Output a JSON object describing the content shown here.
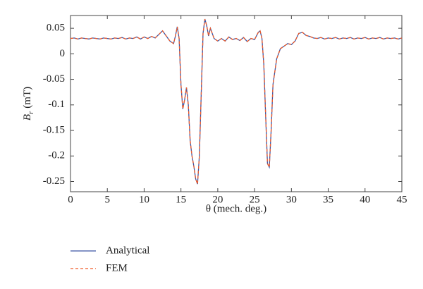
{
  "chart_data": {
    "type": "line",
    "x_label": "θ (mech. deg.)",
    "y_label": {
      "symbol": "B",
      "subscript": "r",
      "unit": "(mT)"
    },
    "xlim": [
      0,
      45
    ],
    "xticks": [
      0,
      5,
      10,
      15,
      20,
      25,
      30,
      35,
      40,
      45
    ],
    "ylim": [
      -0.27,
      0.075
    ],
    "yticks": [
      0.05,
      0,
      -0.05,
      -0.1,
      -0.15,
      -0.2,
      -0.25
    ],
    "x": [
      0,
      0.5,
      1,
      1.5,
      2,
      2.5,
      3,
      3.5,
      4,
      4.5,
      5,
      5.5,
      6,
      6.5,
      7,
      7.5,
      8,
      8.5,
      9,
      9.5,
      10,
      10.5,
      11,
      11.5,
      12,
      12.5,
      13,
      13.5,
      14,
      14.25,
      14.5,
      14.75,
      15,
      15.25,
      15.5,
      15.75,
      16,
      16.25,
      16.5,
      16.75,
      17,
      17.25,
      17.5,
      17.75,
      18,
      18.25,
      18.5,
      18.75,
      19,
      19.5,
      20,
      20.5,
      21,
      21.5,
      22,
      22.5,
      23,
      23.5,
      24,
      24.5,
      25,
      25.5,
      25.75,
      26,
      26.25,
      26.5,
      26.75,
      27,
      27.25,
      27.5,
      28,
      28.5,
      29,
      29.5,
      30,
      30.5,
      31,
      31.5,
      32,
      32.5,
      33,
      33.5,
      34,
      34.5,
      35,
      35.5,
      36,
      36.5,
      37,
      37.5,
      38,
      38.5,
      39,
      39.5,
      40,
      40.5,
      41,
      41.5,
      42,
      42.5,
      43,
      43.5,
      44,
      44.5,
      45
    ],
    "series": [
      {
        "name": "Analytical",
        "color": "#3a55a4",
        "dash": false,
        "values": [
          0.03,
          0.031,
          0.029,
          0.031,
          0.03,
          0.029,
          0.031,
          0.03,
          0.029,
          0.031,
          0.03,
          0.029,
          0.031,
          0.03,
          0.032,
          0.029,
          0.031,
          0.03,
          0.033,
          0.029,
          0.033,
          0.03,
          0.034,
          0.031,
          0.038,
          0.045,
          0.035,
          0.025,
          0.02,
          0.035,
          0.053,
          0.03,
          -0.06,
          -0.108,
          -0.09,
          -0.066,
          -0.1,
          -0.17,
          -0.2,
          -0.22,
          -0.245,
          -0.255,
          -0.2,
          -0.08,
          0.04,
          0.068,
          0.055,
          0.035,
          0.05,
          0.03,
          0.025,
          0.03,
          0.025,
          0.033,
          0.028,
          0.03,
          0.026,
          0.032,
          0.024,
          0.03,
          0.028,
          0.042,
          0.045,
          0.03,
          -0.02,
          -0.12,
          -0.215,
          -0.222,
          -0.15,
          -0.06,
          -0.01,
          0.01,
          0.015,
          0.02,
          0.018,
          0.025,
          0.04,
          0.042,
          0.036,
          0.034,
          0.031,
          0.03,
          0.032,
          0.029,
          0.031,
          0.03,
          0.032,
          0.029,
          0.031,
          0.03,
          0.032,
          0.029,
          0.031,
          0.03,
          0.032,
          0.029,
          0.031,
          0.03,
          0.032,
          0.029,
          0.031,
          0.03,
          0.031,
          0.029,
          0.031
        ]
      },
      {
        "name": "FEM",
        "color": "#f05a28",
        "dash": true,
        "values": [
          0.03,
          0.031,
          0.029,
          0.031,
          0.03,
          0.029,
          0.031,
          0.03,
          0.029,
          0.031,
          0.03,
          0.029,
          0.031,
          0.03,
          0.032,
          0.029,
          0.031,
          0.03,
          0.033,
          0.029,
          0.033,
          0.03,
          0.034,
          0.031,
          0.038,
          0.045,
          0.035,
          0.025,
          0.02,
          0.035,
          0.053,
          0.03,
          -0.06,
          -0.108,
          -0.09,
          -0.066,
          -0.1,
          -0.17,
          -0.2,
          -0.22,
          -0.245,
          -0.255,
          -0.2,
          -0.08,
          0.04,
          0.068,
          0.055,
          0.035,
          0.05,
          0.03,
          0.025,
          0.03,
          0.025,
          0.033,
          0.028,
          0.03,
          0.026,
          0.032,
          0.024,
          0.03,
          0.028,
          0.042,
          0.045,
          0.03,
          -0.02,
          -0.12,
          -0.215,
          -0.222,
          -0.15,
          -0.06,
          -0.01,
          0.01,
          0.015,
          0.02,
          0.018,
          0.025,
          0.04,
          0.042,
          0.036,
          0.034,
          0.031,
          0.03,
          0.032,
          0.029,
          0.031,
          0.03,
          0.032,
          0.029,
          0.031,
          0.03,
          0.032,
          0.029,
          0.031,
          0.03,
          0.032,
          0.029,
          0.031,
          0.03,
          0.032,
          0.029,
          0.031,
          0.03,
          0.031,
          0.029,
          0.031
        ]
      }
    ]
  }
}
